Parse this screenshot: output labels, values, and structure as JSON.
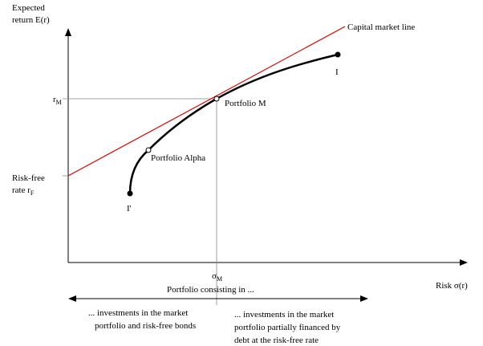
{
  "y_axis": {
    "label_lines": [
      "Expected",
      "return E(r)"
    ]
  },
  "x_axis": {
    "label": "Risk σ(r)"
  },
  "cml_label": "Capital market line",
  "r_m": {
    "text": "r",
    "sub": "M"
  },
  "risk_free": {
    "line1": "Risk-free",
    "line2": "rate r",
    "sub": "F"
  },
  "sigma_m": {
    "text": "σ",
    "sub": "M"
  },
  "points": {
    "end_top": "I",
    "end_bottom": "I'",
    "portfolio_m": "Portfolio M",
    "portfolio_alpha": "Portfolio Alpha"
  },
  "portfolio_caption": "Portfolio consisting in ...",
  "left_note": [
    "... investments in the market",
    "portfolio and risk-free bonds"
  ],
  "right_note": [
    "... investments in the market",
    "portfolio partially financed by",
    "debt at the risk-free rate"
  ]
}
